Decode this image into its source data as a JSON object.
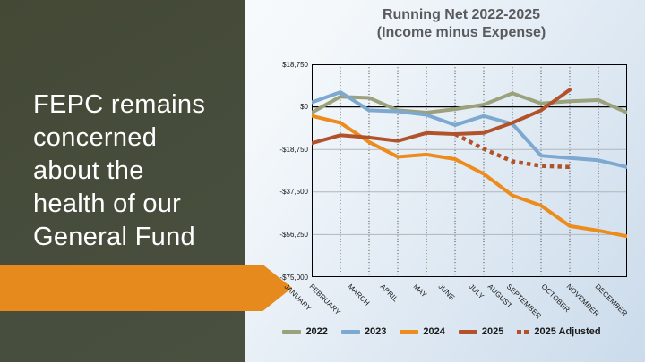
{
  "slide": {
    "headline_lines": [
      "FEPC remains",
      "concerned",
      "about the",
      "health of our",
      "General Fund"
    ],
    "panel_color": "#474d3c",
    "arrow_color": "#e78a1e"
  },
  "chart_data": {
    "type": "line",
    "title": "Running Net 2022-2025 (Income minus Expense)",
    "title_lines": [
      "Running Net 2022-2025",
      "(Income minus Expense)"
    ],
    "categories": [
      "JANUARY",
      "FEBRUARY",
      "MARCH",
      "APRIL",
      "MAY",
      "JUNE",
      "JULY",
      "AUGUST",
      "SEPTEMBER",
      "OCTOBER",
      "NOVEMBER",
      "DECEMBER"
    ],
    "ylim": [
      -75000,
      18750
    ],
    "y_ticks": [
      {
        "label": "$18,750",
        "value": 18750
      },
      {
        "label": "$0",
        "value": 0
      },
      {
        "label": "-$18,750",
        "value": -18750
      },
      {
        "label": "-$37,500",
        "value": -37500
      },
      {
        "label": "-$56,250",
        "value": -56250
      },
      {
        "label": "-$75,000",
        "value": -75000
      }
    ],
    "grid": {
      "vertical": "dotted-black",
      "horizontal": "solid-gray",
      "zero_line": "solid-black"
    },
    "legend_position": "bottom",
    "x_label_rotation_deg": 45,
    "series": [
      {
        "name": "2022",
        "color": "#9aa17b",
        "style": "solid",
        "values": [
          -2500,
          4500,
          4000,
          -1500,
          -2500,
          -1000,
          1000,
          6000,
          1500,
          2500,
          3000,
          -2500
        ]
      },
      {
        "name": "2023",
        "color": "#7da8d0",
        "style": "solid",
        "values": [
          2000,
          6500,
          -1500,
          -2000,
          -3500,
          -8000,
          -4000,
          -7500,
          -21500,
          -22500,
          -23500,
          -26500
        ]
      },
      {
        "name": "2024",
        "color": "#ec8c1d",
        "style": "solid",
        "values": [
          -4000,
          -7000,
          -15500,
          -22000,
          -21000,
          -23000,
          -29500,
          -39000,
          -43500,
          -52500,
          -54500,
          -57000
        ]
      },
      {
        "name": "2025",
        "color": "#b1522b",
        "style": "solid",
        "values": [
          -16000,
          -12500,
          -13500,
          -15000,
          -11500,
          -12000,
          -11500,
          -7000,
          -1500,
          7500,
          null,
          null
        ]
      },
      {
        "name": "2025 Adjusted",
        "color": "#b1522b",
        "style": "dotted",
        "values": [
          null,
          null,
          null,
          null,
          null,
          -12000,
          -18500,
          -24000,
          -26000,
          -26500,
          null,
          null
        ]
      }
    ]
  }
}
